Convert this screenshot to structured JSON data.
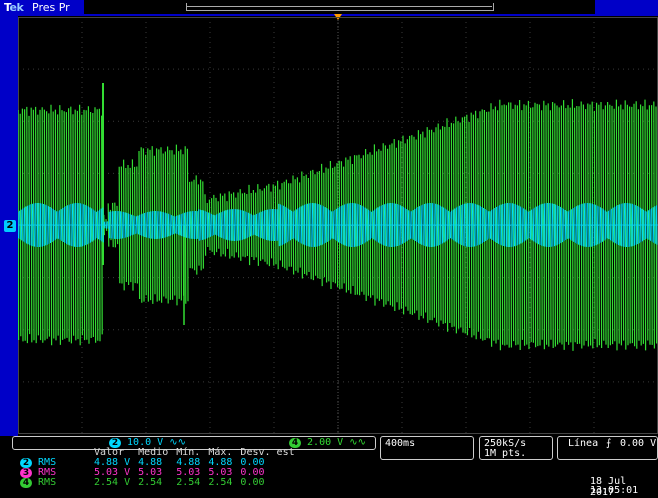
{
  "header": {
    "brand_t": "T",
    "brand_ek": "ek",
    "trigger_state": "Pres Pr"
  },
  "channel_bar": {
    "ch2_num": "2",
    "ch2_scale": "10.0 V",
    "ch2_coupling": "∿∿",
    "ch4_num": "4",
    "ch4_scale": "2.00 V",
    "ch4_coupling": "∿∿"
  },
  "timebase": {
    "scale": "400ms"
  },
  "acquisition": {
    "rate": "250kS/s",
    "points": "1M pts."
  },
  "trigger": {
    "source": "Línea",
    "slope_icon": "rising-edge",
    "level": "0.00 V"
  },
  "datetime": {
    "date": "18 Jul 2017",
    "time": "13:05:01"
  },
  "measurements": {
    "headers": [
      "Valor",
      "Medio",
      "Mín.",
      "Máx.",
      "Desv. est"
    ],
    "rows": [
      {
        "ch": "2",
        "type": "RMS",
        "values": [
          "4.88 V",
          "4.88",
          "4.88",
          "4.88",
          "0.00"
        ],
        "color": "#00d8ff"
      },
      {
        "ch": "3",
        "type": "RMS",
        "values": [
          "5.03 V",
          "5.03",
          "5.03",
          "5.03",
          "0.00"
        ],
        "color": "#ff33cc"
      },
      {
        "ch": "4",
        "type": "RMS",
        "values": [
          "2.54 V",
          "2.54",
          "2.54",
          "2.54",
          "0.00"
        ],
        "color": "#33cc33"
      }
    ]
  },
  "colors": {
    "ch2": "#00d8ff",
    "ch3": "#ff33cc",
    "ch4": "#33dd33",
    "chrome": "#0000c8"
  },
  "ch2_marker": "2"
}
